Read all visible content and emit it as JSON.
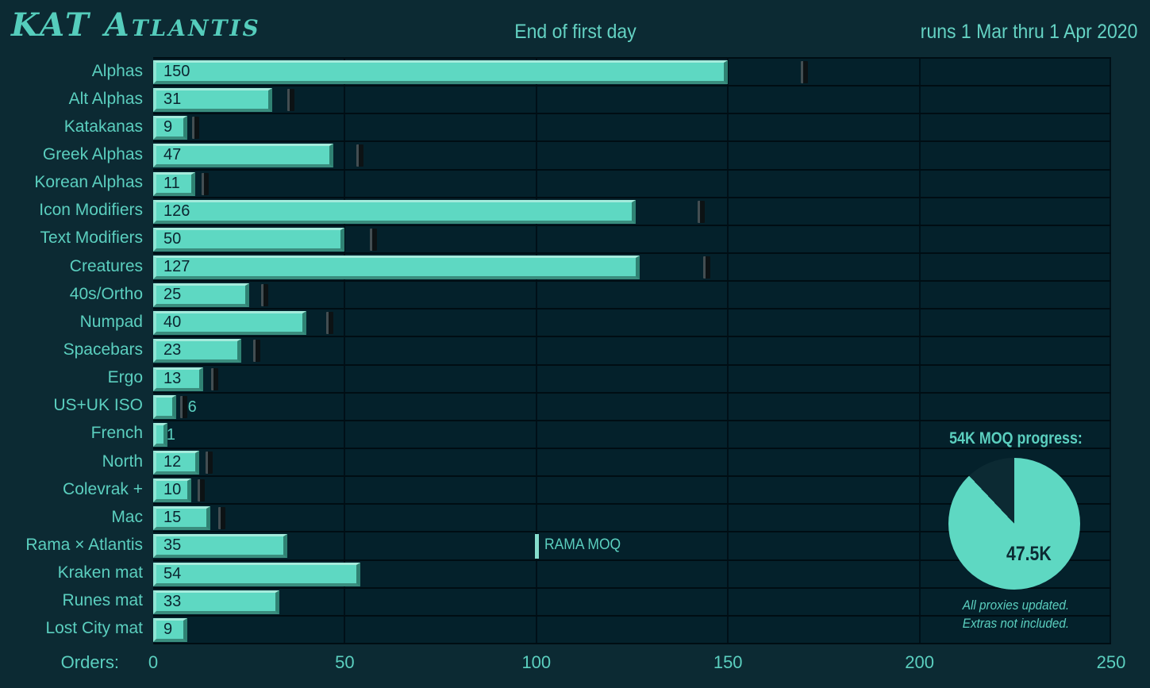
{
  "header": {
    "logo": "KAT Atlantis",
    "title": "End of first day",
    "date_range": "runs 1 Mar thru 1 Apr 2020"
  },
  "axis": {
    "label": "Orders:",
    "ticks": [
      0,
      50,
      100,
      150,
      200,
      250
    ],
    "max": 250
  },
  "chart_data": {
    "type": "bar",
    "orientation": "horizontal",
    "title": "End of first day",
    "xlabel": "Orders",
    "xlim": [
      0,
      250
    ],
    "grid": true,
    "categories": [
      "Alphas",
      "Alt Alphas",
      "Katakanas",
      "Greek Alphas",
      "Korean Alphas",
      "Icon Modifiers",
      "Text Modifiers",
      "Creatures",
      "40s/Ortho",
      "Numpad",
      "Spacebars",
      "Ergo",
      "US+UK ISO",
      "French",
      "North",
      "Colevrak +",
      "Mac",
      "Rama × Atlantis",
      "Kraken mat",
      "Runes mat",
      "Lost City mat"
    ],
    "values": [
      150,
      31,
      9,
      47,
      11,
      126,
      50,
      127,
      25,
      40,
      23,
      13,
      6,
      1,
      12,
      10,
      15,
      35,
      54,
      33,
      9
    ],
    "target_markers": [
      170,
      36,
      11,
      54,
      13.5,
      143,
      57.5,
      144.5,
      29,
      46,
      27,
      16,
      8,
      null,
      14.5,
      12.5,
      18,
      null,
      null,
      null,
      null
    ],
    "annotation": {
      "category": "Rama × Atlantis",
      "category_index": 17,
      "value": 100,
      "label": "RAMA MOQ"
    }
  },
  "pie": {
    "title": "54K MOQ progress:",
    "value": 47.5,
    "total": 54,
    "value_label": "47.5K",
    "footnote_line1": "All proxies updated.",
    "footnote_line2": "Extras not included."
  },
  "colors": {
    "background": "#0c2a33",
    "row_band": "#04212b",
    "bar_fill": "#5ed8c2",
    "bar_bevel_light": "#a5ebdc",
    "bar_bevel_dark": "#2f8273",
    "bar_text": "#0b2530",
    "teal_text": "#5bcfbf",
    "marker_slot": "#0c1214",
    "gridline": "#001018",
    "pie_fill": "#5ed8c2",
    "pie_remainder": "#0c2a33"
  }
}
